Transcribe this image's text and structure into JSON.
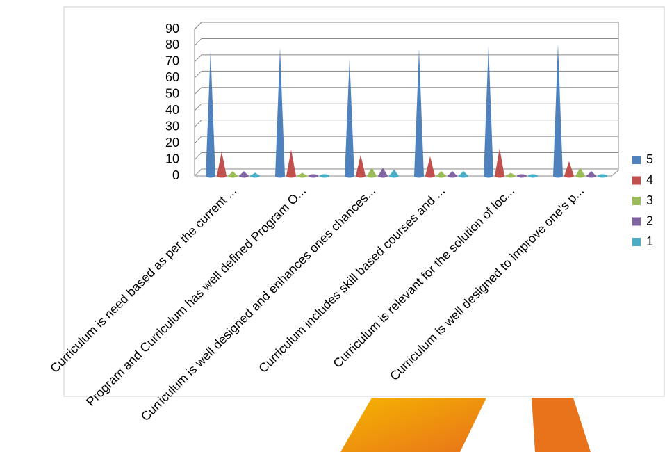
{
  "chart_data": {
    "type": "cone",
    "categories": [
      "Curriculum is need based as per the current ...",
      "Program and Curriculum has well defined Program O...",
      "Curriculum is well designed and enhances ones chances...",
      "Curriculum includes skill based courses and  ...",
      "Curriculum is relevant for the solution of loc...",
      "Curriculum is well designed to improve one’s p..."
    ],
    "series": [
      {
        "name": "5",
        "color": "#4f81bd",
        "values": [
          77,
          79,
          72,
          78,
          80,
          81
        ]
      },
      {
        "name": "4",
        "color": "#c0504d",
        "values": [
          15,
          16,
          13,
          12,
          17,
          9
        ]
      },
      {
        "name": "3",
        "color": "#9bbb59",
        "values": [
          3,
          2,
          5,
          3,
          2,
          5
        ]
      },
      {
        "name": "2",
        "color": "#8064a2",
        "values": [
          3,
          1,
          5,
          3,
          1,
          3
        ]
      },
      {
        "name": "1",
        "color": "#4bacc6",
        "values": [
          2,
          1,
          4,
          3,
          1,
          1
        ]
      }
    ],
    "ylim": [
      0,
      90
    ],
    "yticks": [
      0,
      10,
      20,
      30,
      40,
      50,
      60,
      70,
      80,
      90
    ],
    "grid": true,
    "legend": "right"
  }
}
